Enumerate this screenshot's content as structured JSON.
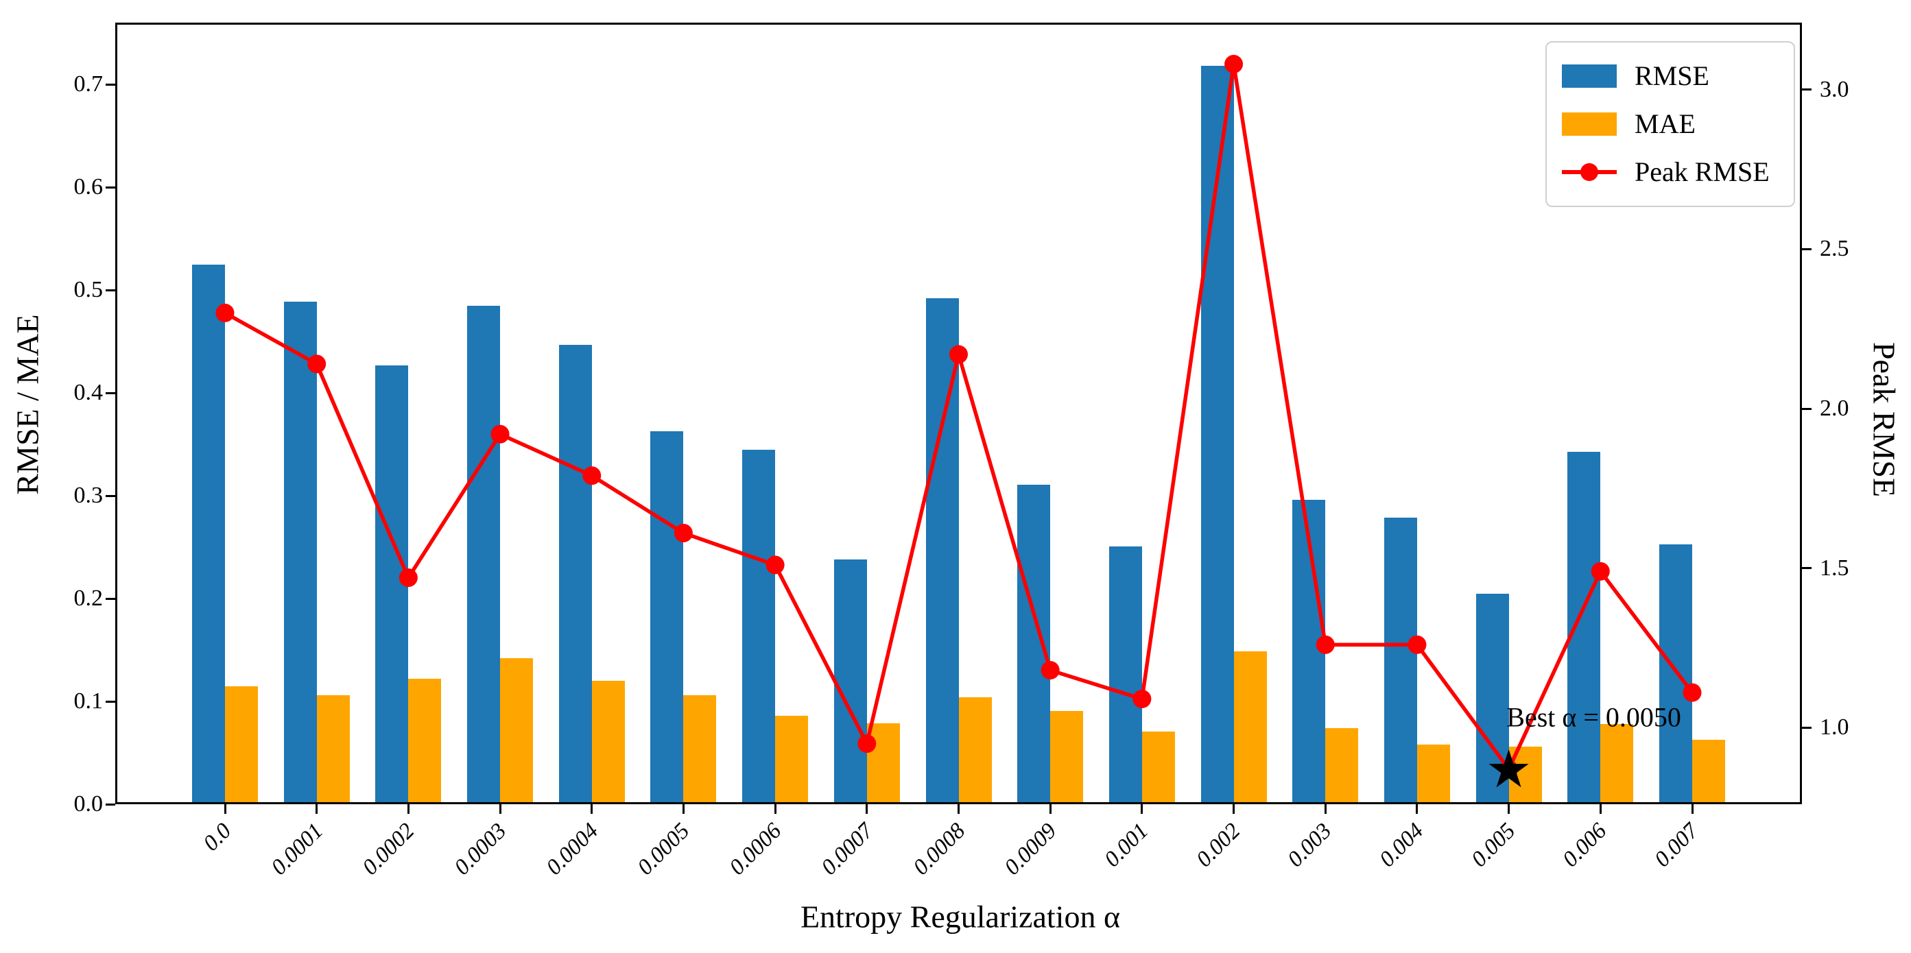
{
  "chart_data": {
    "type": "bar",
    "title": "",
    "xlabel": "Entropy Regularization α",
    "ylabel_left": "RMSE / MAE",
    "ylabel_right": "Peak RMSE",
    "categories": [
      "0.0",
      "0.0001",
      "0.0002",
      "0.0003",
      "0.0004",
      "0.0005",
      "0.0006",
      "0.0007",
      "0.0008",
      "0.0009",
      "0.001",
      "0.002",
      "0.003",
      "0.004",
      "0.005",
      "0.006",
      "0.007"
    ],
    "series": [
      {
        "name": "RMSE",
        "type": "bar",
        "axis": "left",
        "color": "#1f77b4",
        "values": [
          0.525,
          0.489,
          0.427,
          0.485,
          0.447,
          0.363,
          0.345,
          0.238,
          0.492,
          0.311,
          0.251,
          0.718,
          0.296,
          0.279,
          0.205,
          0.343,
          0.253
        ]
      },
      {
        "name": "MAE",
        "type": "bar",
        "axis": "left",
        "color": "#ffa500",
        "values": [
          0.115,
          0.106,
          0.122,
          0.142,
          0.12,
          0.106,
          0.086,
          0.079,
          0.104,
          0.091,
          0.071,
          0.149,
          0.074,
          0.058,
          0.056,
          0.078,
          0.063
        ]
      },
      {
        "name": "Peak RMSE",
        "type": "line",
        "axis": "right",
        "color": "#ff0000",
        "values": [
          2.3,
          2.14,
          1.47,
          1.92,
          1.79,
          1.61,
          1.51,
          0.95,
          2.17,
          1.18,
          1.09,
          3.08,
          1.26,
          1.26,
          0.87,
          1.49,
          1.11
        ]
      }
    ],
    "ylim_left": [
      0,
      0.76
    ],
    "ylim_right": [
      0.76,
      3.21
    ],
    "yticks_left": [
      "0.0",
      "0.1",
      "0.2",
      "0.3",
      "0.4",
      "0.5",
      "0.6",
      "0.7"
    ],
    "yticks_right": [
      "1.0",
      "1.5",
      "2.0",
      "2.5",
      "3.0"
    ],
    "legend": {
      "position": "upper right"
    },
    "grid": false,
    "annotation": {
      "text": "Best α = 0.0050",
      "star": "★",
      "category": "0.005",
      "value_right": 0.87
    }
  }
}
